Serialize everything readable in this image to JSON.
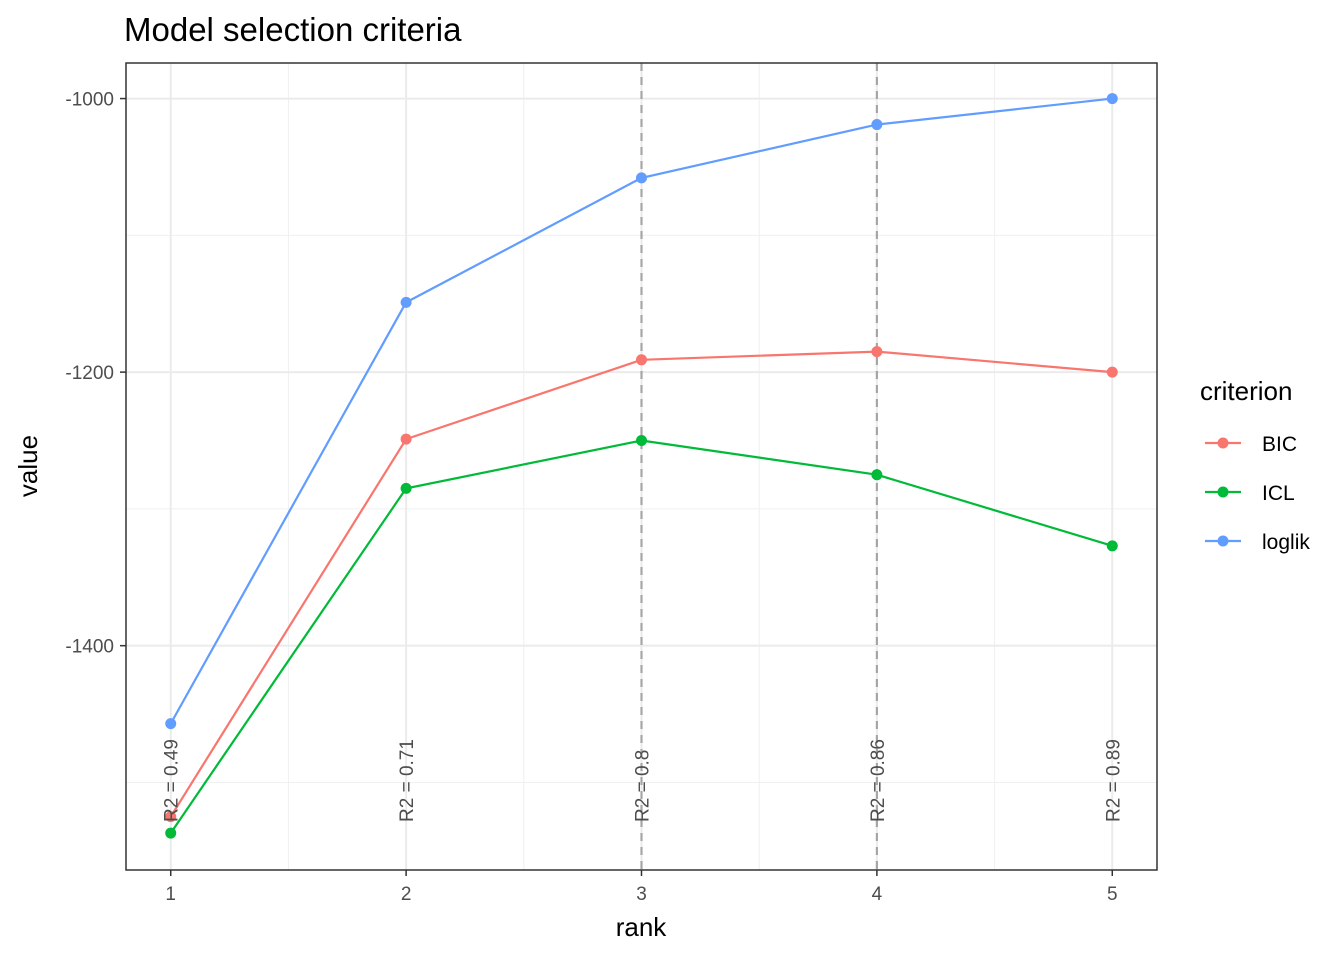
{
  "chart_data": {
    "type": "line",
    "title": "Model selection criteria",
    "xlabel": "rank",
    "ylabel": "value",
    "x": [
      1,
      2,
      3,
      4,
      5
    ],
    "xlim": [
      0.81,
      5.19
    ],
    "ylim": [
      -1564,
      -974
    ],
    "yticks": [
      -1000,
      -1200,
      -1400
    ],
    "xticks": [
      1,
      2,
      3,
      4,
      5
    ],
    "grid": true,
    "legend": {
      "title": "criterion",
      "placement": "right"
    },
    "series": [
      {
        "name": "BIC",
        "color": "#F8766D",
        "values": [
          -1525,
          -1249,
          -1191,
          -1185,
          -1200
        ]
      },
      {
        "name": "ICL",
        "color": "#00BA38",
        "values": [
          -1537,
          -1285,
          -1250,
          -1275,
          -1327
        ]
      },
      {
        "name": "loglik",
        "color": "#619CFF",
        "values": [
          -1457,
          -1149,
          -1058,
          -1019,
          -1000
        ]
      }
    ],
    "vlines": [
      3,
      4
    ],
    "annotations": [
      "R2 = 0.49",
      "R2 = 0.71",
      "R2 = 0.8",
      "R2 = 0.86",
      "R2 = 0.89"
    ]
  }
}
